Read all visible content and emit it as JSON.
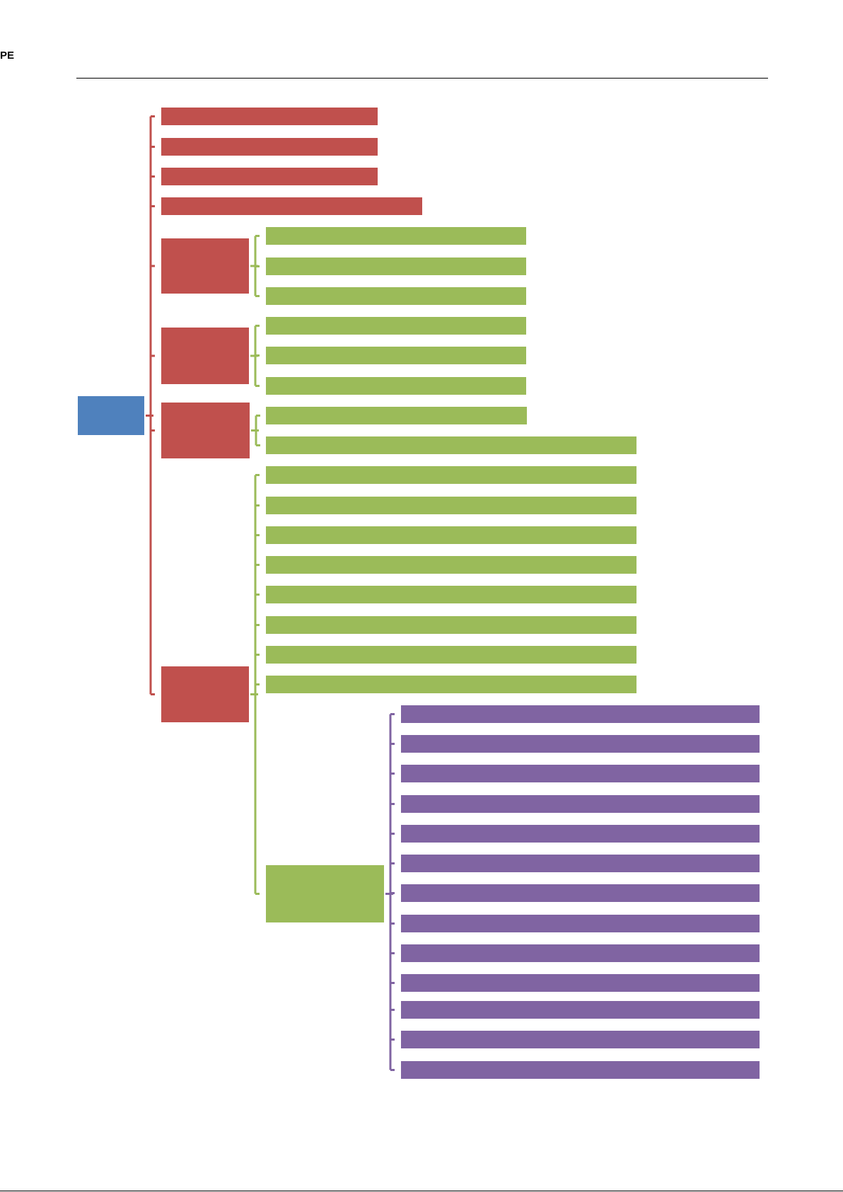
{
  "header": {
    "text": "PE"
  },
  "colors": {
    "root": "#4F81BD",
    "level1": "#C0504D",
    "level2": "#9BBB59",
    "level3": "#8064A2",
    "rule": "#000000"
  },
  "tree": {
    "id": "root",
    "level": 0,
    "children": [
      {
        "id": "r1",
        "level": 1,
        "children": []
      },
      {
        "id": "r2",
        "level": 1,
        "children": []
      },
      {
        "id": "r3",
        "level": 1,
        "children": []
      },
      {
        "id": "r4",
        "level": 1,
        "children": []
      },
      {
        "id": "r5",
        "level": 1,
        "children": [
          {
            "id": "g1",
            "level": 2,
            "children": []
          },
          {
            "id": "g2",
            "level": 2,
            "children": []
          },
          {
            "id": "g3",
            "level": 2,
            "children": []
          }
        ]
      },
      {
        "id": "r6",
        "level": 1,
        "children": [
          {
            "id": "g4",
            "level": 2,
            "children": []
          },
          {
            "id": "g5",
            "level": 2,
            "children": []
          },
          {
            "id": "g6",
            "level": 2,
            "children": []
          }
        ]
      },
      {
        "id": "r7",
        "level": 1,
        "children": [
          {
            "id": "g7",
            "level": 2,
            "children": []
          },
          {
            "id": "g8",
            "level": 2,
            "children": []
          }
        ]
      },
      {
        "id": "r8",
        "level": 1,
        "children": [
          {
            "id": "g9",
            "level": 2,
            "children": []
          },
          {
            "id": "g10",
            "level": 2,
            "children": []
          },
          {
            "id": "g11",
            "level": 2,
            "children": []
          },
          {
            "id": "g12",
            "level": 2,
            "children": []
          },
          {
            "id": "g13",
            "level": 2,
            "children": []
          },
          {
            "id": "g14",
            "level": 2,
            "children": []
          },
          {
            "id": "g15",
            "level": 2,
            "children": []
          },
          {
            "id": "g16",
            "level": 2,
            "children": []
          },
          {
            "id": "g17",
            "level": 2,
            "children": [
              {
                "id": "p1",
                "level": 3,
                "children": []
              },
              {
                "id": "p2",
                "level": 3,
                "children": []
              },
              {
                "id": "p3",
                "level": 3,
                "children": []
              },
              {
                "id": "p4",
                "level": 3,
                "children": []
              },
              {
                "id": "p5",
                "level": 3,
                "children": []
              },
              {
                "id": "p6",
                "level": 3,
                "children": []
              },
              {
                "id": "p7",
                "level": 3,
                "children": []
              },
              {
                "id": "p8",
                "level": 3,
                "children": []
              },
              {
                "id": "p9",
                "level": 3,
                "children": []
              },
              {
                "id": "p10",
                "level": 3,
                "children": []
              },
              {
                "id": "p11",
                "level": 3,
                "children": []
              },
              {
                "id": "p12",
                "level": 3,
                "children": []
              },
              {
                "id": "p13",
                "level": 3,
                "children": []
              }
            ]
          }
        ]
      }
    ]
  }
}
